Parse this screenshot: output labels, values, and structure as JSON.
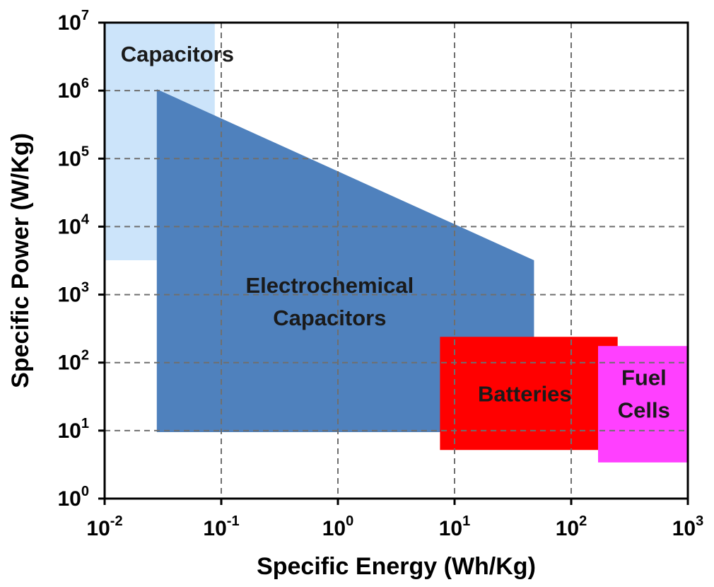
{
  "chart_data": {
    "type": "area",
    "title": "",
    "xlabel": "Specific Energy (Wh/Kg)",
    "ylabel": "Specific Power (W/Kg)",
    "xscale": "log",
    "yscale": "log",
    "xlim": [
      0.01,
      1000
    ],
    "ylim": [
      1,
      10000000
    ],
    "grid": true,
    "x_ticks": [
      {
        "value": 0.01,
        "base": "10",
        "exp": "-2"
      },
      {
        "value": 0.1,
        "base": "10",
        "exp": "-1"
      },
      {
        "value": 1,
        "base": "10",
        "exp": "0"
      },
      {
        "value": 10,
        "base": "10",
        "exp": "1"
      },
      {
        "value": 100,
        "base": "10",
        "exp": "2"
      },
      {
        "value": 1000,
        "base": "10",
        "exp": "3"
      }
    ],
    "y_ticks": [
      {
        "value": 1,
        "base": "10",
        "exp": "0"
      },
      {
        "value": 10,
        "base": "10",
        "exp": "1"
      },
      {
        "value": 100,
        "base": "10",
        "exp": "2"
      },
      {
        "value": 1000,
        "base": "10",
        "exp": "3"
      },
      {
        "value": 10000,
        "base": "10",
        "exp": "4"
      },
      {
        "value": 100000,
        "base": "10",
        "exp": "5"
      },
      {
        "value": 1000000,
        "base": "10",
        "exp": "6"
      },
      {
        "value": 10000000,
        "base": "10",
        "exp": "7"
      }
    ],
    "regions": [
      {
        "name": "Capacitors",
        "label_lines": [
          "Capacitors"
        ],
        "color": "#cce4fa",
        "polygon": [
          [
            0.01,
            10000000
          ],
          [
            0.088,
            10000000
          ],
          [
            0.088,
            3200
          ],
          [
            0.01,
            3200
          ]
        ],
        "label_at": [
          0.042,
          3500000
        ]
      },
      {
        "name": "Electrochemical Capacitors",
        "label_lines": [
          "Electrochemical",
          "Capacitors"
        ],
        "color": "#4f81bd",
        "polygon": [
          [
            0.028,
            1050000
          ],
          [
            0.028,
            9.5
          ],
          [
            48,
            9.5
          ],
          [
            48,
            3200
          ]
        ],
        "label_at": [
          0.85,
          800
        ]
      },
      {
        "name": "Batteries",
        "label_lines": [
          "Batteries"
        ],
        "color": "#ff0000",
        "polygon": [
          [
            7.5,
            240
          ],
          [
            250,
            240
          ],
          [
            250,
            5.2
          ],
          [
            7.5,
            5.2
          ]
        ],
        "label_at": [
          40,
          35
        ]
      },
      {
        "name": "Fuel Cells",
        "label_lines": [
          "Fuel",
          "Cells"
        ],
        "color": "#ff40ff",
        "polygon": [
          [
            170,
            175
          ],
          [
            1000,
            175
          ],
          [
            1000,
            3.4
          ],
          [
            170,
            3.4
          ]
        ],
        "label_at": [
          420,
          35
        ]
      }
    ]
  }
}
